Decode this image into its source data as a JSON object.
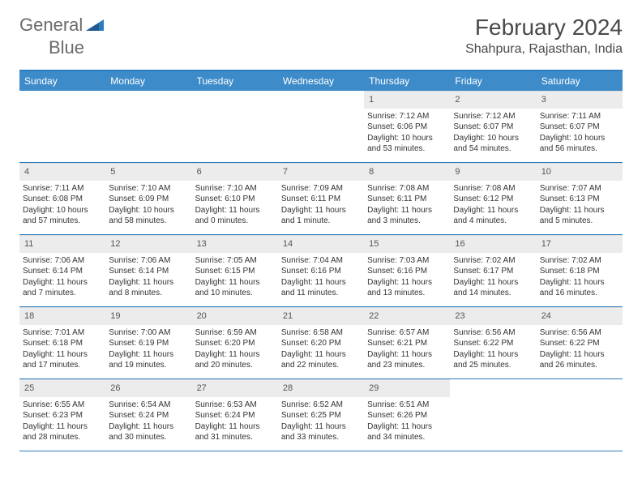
{
  "logo": {
    "text1": "General",
    "text2": "Blue"
  },
  "title": "February 2024",
  "location": "Shahpura, Rajasthan, India",
  "colors": {
    "header_bg": "#3d8bc9",
    "header_text": "#ffffff",
    "border": "#2b7bbf",
    "daynum_bg": "#ececec",
    "body_text": "#333333",
    "logo_grey": "#6b6b6b",
    "logo_blue": "#2b7bbf"
  },
  "day_names": [
    "Sunday",
    "Monday",
    "Tuesday",
    "Wednesday",
    "Thursday",
    "Friday",
    "Saturday"
  ],
  "weeks": [
    [
      {
        "n": "",
        "empty": true
      },
      {
        "n": "",
        "empty": true
      },
      {
        "n": "",
        "empty": true
      },
      {
        "n": "",
        "empty": true
      },
      {
        "n": "1",
        "sr": "Sunrise: 7:12 AM",
        "ss": "Sunset: 6:06 PM",
        "dl1": "Daylight: 10 hours",
        "dl2": "and 53 minutes."
      },
      {
        "n": "2",
        "sr": "Sunrise: 7:12 AM",
        "ss": "Sunset: 6:07 PM",
        "dl1": "Daylight: 10 hours",
        "dl2": "and 54 minutes."
      },
      {
        "n": "3",
        "sr": "Sunrise: 7:11 AM",
        "ss": "Sunset: 6:07 PM",
        "dl1": "Daylight: 10 hours",
        "dl2": "and 56 minutes."
      }
    ],
    [
      {
        "n": "4",
        "sr": "Sunrise: 7:11 AM",
        "ss": "Sunset: 6:08 PM",
        "dl1": "Daylight: 10 hours",
        "dl2": "and 57 minutes."
      },
      {
        "n": "5",
        "sr": "Sunrise: 7:10 AM",
        "ss": "Sunset: 6:09 PM",
        "dl1": "Daylight: 10 hours",
        "dl2": "and 58 minutes."
      },
      {
        "n": "6",
        "sr": "Sunrise: 7:10 AM",
        "ss": "Sunset: 6:10 PM",
        "dl1": "Daylight: 11 hours",
        "dl2": "and 0 minutes."
      },
      {
        "n": "7",
        "sr": "Sunrise: 7:09 AM",
        "ss": "Sunset: 6:11 PM",
        "dl1": "Daylight: 11 hours",
        "dl2": "and 1 minute."
      },
      {
        "n": "8",
        "sr": "Sunrise: 7:08 AM",
        "ss": "Sunset: 6:11 PM",
        "dl1": "Daylight: 11 hours",
        "dl2": "and 3 minutes."
      },
      {
        "n": "9",
        "sr": "Sunrise: 7:08 AM",
        "ss": "Sunset: 6:12 PM",
        "dl1": "Daylight: 11 hours",
        "dl2": "and 4 minutes."
      },
      {
        "n": "10",
        "sr": "Sunrise: 7:07 AM",
        "ss": "Sunset: 6:13 PM",
        "dl1": "Daylight: 11 hours",
        "dl2": "and 5 minutes."
      }
    ],
    [
      {
        "n": "11",
        "sr": "Sunrise: 7:06 AM",
        "ss": "Sunset: 6:14 PM",
        "dl1": "Daylight: 11 hours",
        "dl2": "and 7 minutes."
      },
      {
        "n": "12",
        "sr": "Sunrise: 7:06 AM",
        "ss": "Sunset: 6:14 PM",
        "dl1": "Daylight: 11 hours",
        "dl2": "and 8 minutes."
      },
      {
        "n": "13",
        "sr": "Sunrise: 7:05 AM",
        "ss": "Sunset: 6:15 PM",
        "dl1": "Daylight: 11 hours",
        "dl2": "and 10 minutes."
      },
      {
        "n": "14",
        "sr": "Sunrise: 7:04 AM",
        "ss": "Sunset: 6:16 PM",
        "dl1": "Daylight: 11 hours",
        "dl2": "and 11 minutes."
      },
      {
        "n": "15",
        "sr": "Sunrise: 7:03 AM",
        "ss": "Sunset: 6:16 PM",
        "dl1": "Daylight: 11 hours",
        "dl2": "and 13 minutes."
      },
      {
        "n": "16",
        "sr": "Sunrise: 7:02 AM",
        "ss": "Sunset: 6:17 PM",
        "dl1": "Daylight: 11 hours",
        "dl2": "and 14 minutes."
      },
      {
        "n": "17",
        "sr": "Sunrise: 7:02 AM",
        "ss": "Sunset: 6:18 PM",
        "dl1": "Daylight: 11 hours",
        "dl2": "and 16 minutes."
      }
    ],
    [
      {
        "n": "18",
        "sr": "Sunrise: 7:01 AM",
        "ss": "Sunset: 6:18 PM",
        "dl1": "Daylight: 11 hours",
        "dl2": "and 17 minutes."
      },
      {
        "n": "19",
        "sr": "Sunrise: 7:00 AM",
        "ss": "Sunset: 6:19 PM",
        "dl1": "Daylight: 11 hours",
        "dl2": "and 19 minutes."
      },
      {
        "n": "20",
        "sr": "Sunrise: 6:59 AM",
        "ss": "Sunset: 6:20 PM",
        "dl1": "Daylight: 11 hours",
        "dl2": "and 20 minutes."
      },
      {
        "n": "21",
        "sr": "Sunrise: 6:58 AM",
        "ss": "Sunset: 6:20 PM",
        "dl1": "Daylight: 11 hours",
        "dl2": "and 22 minutes."
      },
      {
        "n": "22",
        "sr": "Sunrise: 6:57 AM",
        "ss": "Sunset: 6:21 PM",
        "dl1": "Daylight: 11 hours",
        "dl2": "and 23 minutes."
      },
      {
        "n": "23",
        "sr": "Sunrise: 6:56 AM",
        "ss": "Sunset: 6:22 PM",
        "dl1": "Daylight: 11 hours",
        "dl2": "and 25 minutes."
      },
      {
        "n": "24",
        "sr": "Sunrise: 6:56 AM",
        "ss": "Sunset: 6:22 PM",
        "dl1": "Daylight: 11 hours",
        "dl2": "and 26 minutes."
      }
    ],
    [
      {
        "n": "25",
        "sr": "Sunrise: 6:55 AM",
        "ss": "Sunset: 6:23 PM",
        "dl1": "Daylight: 11 hours",
        "dl2": "and 28 minutes."
      },
      {
        "n": "26",
        "sr": "Sunrise: 6:54 AM",
        "ss": "Sunset: 6:24 PM",
        "dl1": "Daylight: 11 hours",
        "dl2": "and 30 minutes."
      },
      {
        "n": "27",
        "sr": "Sunrise: 6:53 AM",
        "ss": "Sunset: 6:24 PM",
        "dl1": "Daylight: 11 hours",
        "dl2": "and 31 minutes."
      },
      {
        "n": "28",
        "sr": "Sunrise: 6:52 AM",
        "ss": "Sunset: 6:25 PM",
        "dl1": "Daylight: 11 hours",
        "dl2": "and 33 minutes."
      },
      {
        "n": "29",
        "sr": "Sunrise: 6:51 AM",
        "ss": "Sunset: 6:26 PM",
        "dl1": "Daylight: 11 hours",
        "dl2": "and 34 minutes."
      },
      {
        "n": "",
        "empty": true
      },
      {
        "n": "",
        "empty": true
      }
    ]
  ]
}
